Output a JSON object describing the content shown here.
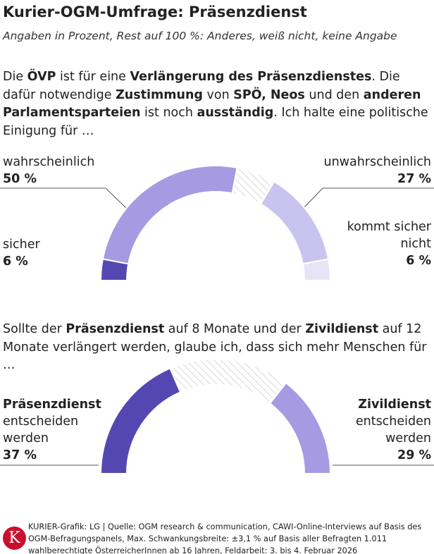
{
  "title": "Kurier-OGM-Umfrage: Präsenzdienst",
  "subtitle": "Angaben in Prozent, Rest auf 100 %: Anderes, weiß nicht, keine Angabe",
  "chart_data": [
    {
      "type": "half-donut",
      "question": [
        {
          "text": "Die ",
          "bold": false
        },
        {
          "text": "ÖVP",
          "bold": true
        },
        {
          "text": " ist für eine ",
          "bold": false
        },
        {
          "text": "Verlängerung des Präsenzdienstes",
          "bold": true
        },
        {
          "text": ". Die dafür notwendige ",
          "bold": false
        },
        {
          "text": "Zustimmung",
          "bold": true
        },
        {
          "text": " von ",
          "bold": false
        },
        {
          "text": "SPÖ, Neos",
          "bold": true
        },
        {
          "text": " und den ",
          "bold": false
        },
        {
          "text": "anderen Parlamentsparteien",
          "bold": true
        },
        {
          "text": " ist noch ",
          "bold": false
        },
        {
          "text": "ausständig",
          "bold": true
        },
        {
          "text": ". Ich halte eine politische Einigung für …",
          "bold": false
        }
      ],
      "range": [
        0,
        100
      ],
      "category_bold": false,
      "left": {
        "categories": [
          "sicher",
          "wahrscheinlich"
        ],
        "values": [
          6,
          50
        ],
        "value_labels": [
          "6 %",
          "50 %"
        ],
        "colors": [
          "#5547b2",
          "#a69ae2"
        ]
      },
      "right": {
        "categories": [
          "kommt sicher nicht",
          "unwahrscheinlich"
        ],
        "values": [
          6,
          27
        ],
        "value_labels": [
          "6 %",
          "27 %"
        ],
        "colors": [
          "#e7e4f8",
          "#c9c3ef"
        ]
      },
      "rest_fill": "hatched"
    },
    {
      "type": "half-donut",
      "question": [
        {
          "text": "Sollte der ",
          "bold": false
        },
        {
          "text": "Präsenzdienst",
          "bold": true
        },
        {
          "text": " auf 8 Monate und der ",
          "bold": false
        },
        {
          "text": "Zivildienst",
          "bold": true
        },
        {
          "text": " auf 12 Monate verlängert werden, glaube ich, dass sich mehr Menschen für …",
          "bold": false
        }
      ],
      "range": [
        0,
        100
      ],
      "category_bold": true,
      "category_suffix": "entscheiden werden",
      "left": {
        "categories": [
          "Präsenzdienst"
        ],
        "values": [
          37
        ],
        "value_labels": [
          "37 %"
        ],
        "colors": [
          "#5547b2"
        ]
      },
      "right": {
        "categories": [
          "Zivildienst"
        ],
        "values": [
          29
        ],
        "value_labels": [
          "29 %"
        ],
        "colors": [
          "#a69ae2"
        ]
      },
      "rest_fill": "hatched"
    }
  ],
  "logo": "K",
  "source": "KURIER-Grafik: LG | Quelle: OGM research & communication, CAWI-Online-Interviews auf Basis des OGM-Befragungspanels, Max. Schwankungsbreite: ±3,1 % auf Basis aller Befragten 1.011 wahlberechtigte ÖsterreicherInnen ab 16 Jahren, Feldarbeit: 3. bis 4. Februar 2026"
}
